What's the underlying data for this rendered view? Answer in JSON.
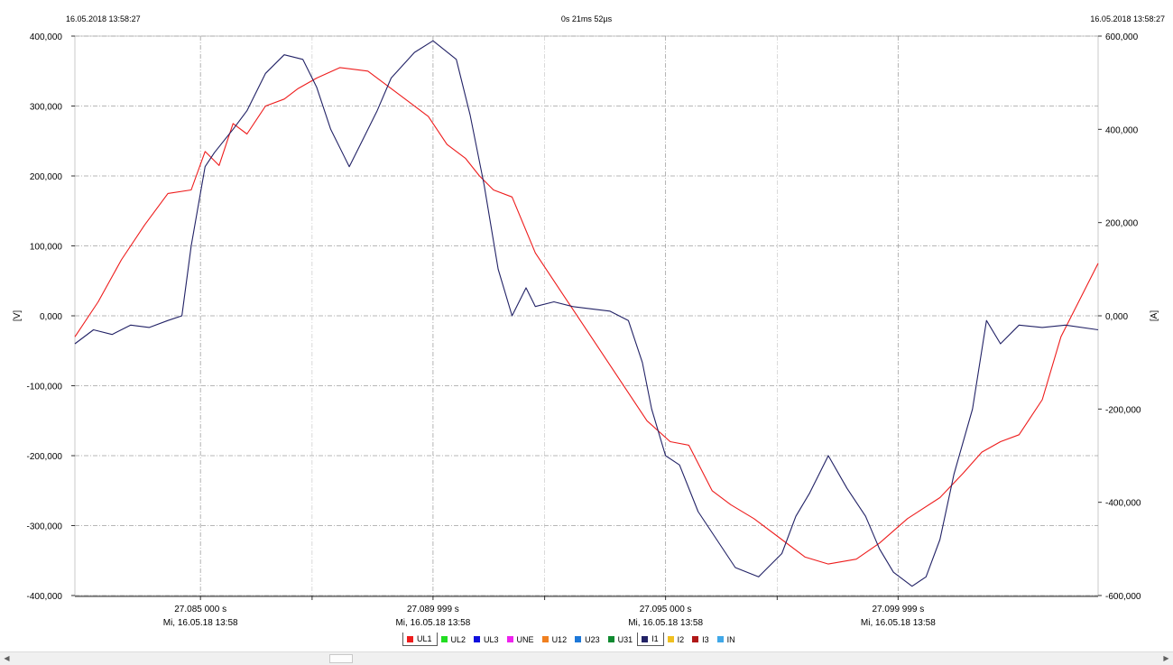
{
  "header": {
    "left_time": "16.05.2018 13:58:27",
    "center_duration": "0s 21ms 52µs",
    "right_time": "16.05.2018 13:58:27"
  },
  "chart_data": {
    "type": "line",
    "title": "",
    "x_ticks": [
      {
        "t": 27.085,
        "label1": "27.085 000 s",
        "label2": "Mi, 16.05.18 13:58"
      },
      {
        "t": 27.09,
        "label1": "27.089 999 s",
        "label2": "Mi, 16.05.18 13:58"
      },
      {
        "t": 27.095,
        "label1": "27.095 000 s",
        "label2": "Mi, 16.05.18 13:58"
      },
      {
        "t": 27.1,
        "label1": "27.099 999 s",
        "label2": "Mi, 16.05.18 13:58"
      }
    ],
    "x_minor_ticks": [
      27.0874,
      27.0924,
      27.0974
    ],
    "xlim": [
      27.0823,
      27.1043
    ],
    "left_axis": {
      "label": "[V]",
      "ylim": [
        -400000,
        400000
      ],
      "ticks": [
        400000,
        300000,
        200000,
        100000,
        0,
        -100000,
        -200000,
        -300000,
        -400000
      ],
      "tick_labels": [
        "400,000",
        "300,000",
        "200,000",
        "100,000",
        "0,000",
        "-100,000",
        "-200,000",
        "-300,000",
        "-400,000"
      ]
    },
    "right_axis": {
      "label": "[A]",
      "ylim": [
        -600000,
        600000
      ],
      "ticks": [
        600000,
        400000,
        200000,
        0,
        -200000,
        -400000,
        -600000
      ],
      "tick_labels": [
        "600,000",
        "400,000",
        "200,000",
        "0,000",
        "-200,000",
        "-400,000",
        "-600,000"
      ]
    },
    "grid": true,
    "series": [
      {
        "name": "UL1",
        "axis": "left",
        "color": "#ee1c1c",
        "x": [
          27.0823,
          27.0828,
          27.0833,
          27.0838,
          27.0843,
          27.0848,
          27.0851,
          27.0854,
          27.0857,
          27.086,
          27.0864,
          27.0868,
          27.0871,
          27.0875,
          27.088,
          27.0886,
          27.089,
          27.0895,
          27.0899,
          27.0903,
          27.0907,
          27.091,
          27.0913,
          27.0917,
          27.0922,
          27.0928,
          27.0934,
          27.094,
          27.0946,
          27.0951,
          27.0955,
          27.096,
          27.0964,
          27.0969,
          27.0975,
          27.098,
          27.0985,
          27.0991,
          27.0996,
          27.1002,
          27.1009,
          27.1014,
          27.1018,
          27.1022,
          27.1026,
          27.1031,
          27.1035,
          27.1043
        ],
        "y": [
          -30000,
          20000,
          80000,
          130000,
          175000,
          180000,
          235000,
          215000,
          275000,
          260000,
          300000,
          310000,
          325000,
          340000,
          355000,
          350000,
          330000,
          305000,
          285000,
          245000,
          225000,
          200000,
          180000,
          170000,
          90000,
          30000,
          -30000,
          -90000,
          -150000,
          -180000,
          -185000,
          -250000,
          -270000,
          -290000,
          -320000,
          -345000,
          -355000,
          -348000,
          -325000,
          -290000,
          -260000,
          -225000,
          -195000,
          -180000,
          -170000,
          -120000,
          -30000,
          75000
        ]
      },
      {
        "name": "UL2",
        "axis": "left",
        "color": "#22dd22",
        "x": [],
        "y": []
      },
      {
        "name": "UL3",
        "axis": "left",
        "color": "#1010dd",
        "x": [],
        "y": []
      },
      {
        "name": "UNE",
        "axis": "left",
        "color": "#ee22ee",
        "x": [],
        "y": []
      },
      {
        "name": "U12",
        "axis": "left",
        "color": "#f08020",
        "x": [],
        "y": []
      },
      {
        "name": "U23",
        "axis": "left",
        "color": "#1e78d8",
        "x": [],
        "y": []
      },
      {
        "name": "U31",
        "axis": "left",
        "color": "#108a30",
        "x": [],
        "y": []
      },
      {
        "name": "I1",
        "axis": "right",
        "color": "#222266",
        "x": [
          27.0823,
          27.0827,
          27.0831,
          27.0835,
          27.0839,
          27.0843,
          27.0846,
          27.0848,
          27.0851,
          27.0853,
          27.0857,
          27.086,
          27.0864,
          27.0868,
          27.0872,
          27.0875,
          27.0878,
          27.0882,
          27.0885,
          27.0888,
          27.0891,
          27.0896,
          27.09,
          27.0905,
          27.0908,
          27.0911,
          27.0914,
          27.0917,
          27.092,
          27.0922,
          27.0926,
          27.093,
          27.0934,
          27.0938,
          27.0942,
          27.0945,
          27.0947,
          27.095,
          27.0953,
          27.0957,
          27.0961,
          27.0965,
          27.097,
          27.0975,
          27.0978,
          27.0981,
          27.0985,
          27.0989,
          27.0993,
          27.0996,
          27.0999,
          27.1003,
          27.1006,
          27.1009,
          27.1012,
          27.1016,
          27.1019,
          27.1022,
          27.1026,
          27.1031,
          27.1036,
          27.1043
        ],
        "y": [
          -60000,
          -30000,
          -40000,
          -20000,
          -25000,
          -10000,
          0,
          150000,
          320000,
          350000,
          400000,
          440000,
          520000,
          560000,
          550000,
          490000,
          400000,
          320000,
          380000,
          440000,
          510000,
          565000,
          590000,
          550000,
          430000,
          280000,
          100000,
          0,
          60000,
          20000,
          30000,
          20000,
          15000,
          10000,
          -10000,
          -100000,
          -200000,
          -300000,
          -320000,
          -420000,
          -480000,
          -540000,
          -560000,
          -510000,
          -430000,
          -380000,
          -300000,
          -370000,
          -430000,
          -500000,
          -550000,
          -580000,
          -560000,
          -480000,
          -340000,
          -200000,
          -10000,
          -60000,
          -20000,
          -25000,
          -20000,
          -30000
        ]
      },
      {
        "name": "I2",
        "axis": "right",
        "color": "#f0c020",
        "x": [],
        "y": []
      },
      {
        "name": "I3",
        "axis": "right",
        "color": "#b01818",
        "x": [],
        "y": []
      },
      {
        "name": "IN",
        "axis": "right",
        "color": "#40a8e8",
        "x": [],
        "y": []
      }
    ]
  },
  "legend_boxed": [
    "UL1",
    "I1"
  ]
}
